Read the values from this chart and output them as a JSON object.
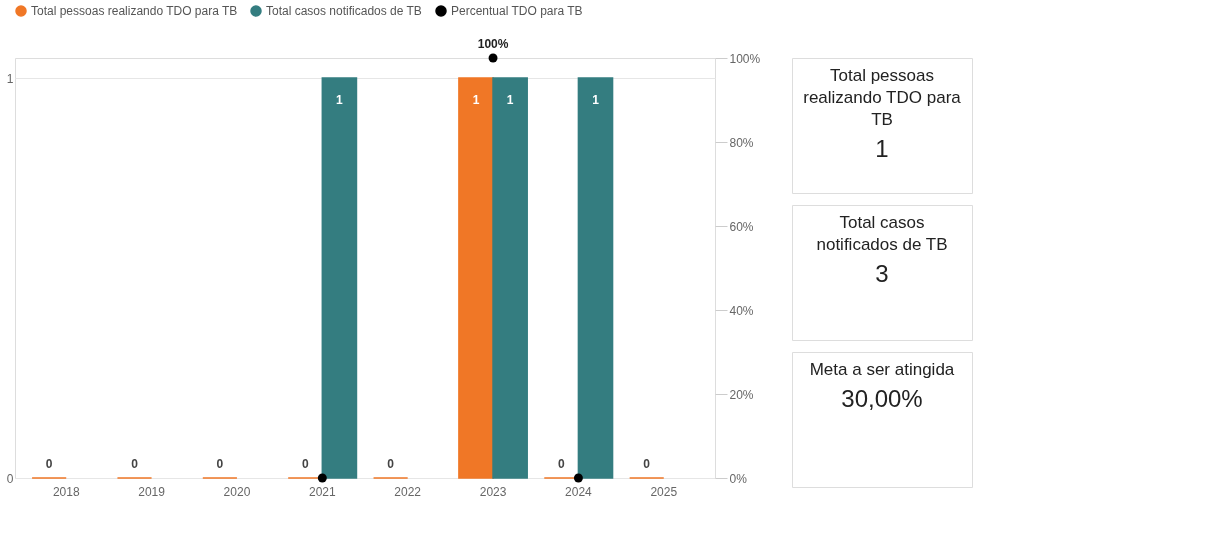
{
  "chart_data": [
    {
      "type": "bar",
      "categories": [
        "2018",
        "2019",
        "2020",
        "2021",
        "2022",
        "2023",
        "2024",
        "2025"
      ],
      "series": [
        {
          "name": "Total pessoas realizando TDO para TB",
          "type": "bar",
          "color": "#f07726",
          "values": [
            0,
            0,
            0,
            0,
            0,
            1,
            0,
            0
          ]
        },
        {
          "name": "Total casos notificados de TB",
          "type": "bar",
          "color": "#347d80",
          "values": [
            null,
            null,
            null,
            1,
            null,
            1,
            1,
            null
          ]
        },
        {
          "name": "Percentual TDO para TB",
          "type": "scatter",
          "axis": "y2",
          "color": "#000000",
          "values": [
            null,
            null,
            null,
            0,
            null,
            100,
            0,
            null
          ],
          "value_labels": [
            null,
            null,
            null,
            null,
            null,
            "100%",
            null,
            null
          ]
        }
      ],
      "ylim": [
        0,
        1.05
      ],
      "yticks": [
        0,
        1
      ],
      "y2lim": [
        0,
        100
      ],
      "y2ticks": [
        {
          "value": 0,
          "label": "0%"
        },
        {
          "value": 20,
          "label": "20%"
        },
        {
          "value": 40,
          "label": "40%"
        },
        {
          "value": 60,
          "label": "60%"
        },
        {
          "value": 80,
          "label": "80%"
        },
        {
          "value": 100,
          "label": "100%"
        }
      ],
      "data_labels": true,
      "grid": "y",
      "legend": "top left",
      "marker": "circle"
    },
    {
      "type": "other",
      "title": "Total pessoas realizando TDO para TB",
      "annotations": [
        "1"
      ]
    },
    {
      "type": "other",
      "title": "Total casos notificados de TB",
      "annotations": [
        "3"
      ]
    },
    {
      "type": "other",
      "title": "Meta a ser atingida",
      "annotations": [
        "30,00%"
      ]
    }
  ]
}
